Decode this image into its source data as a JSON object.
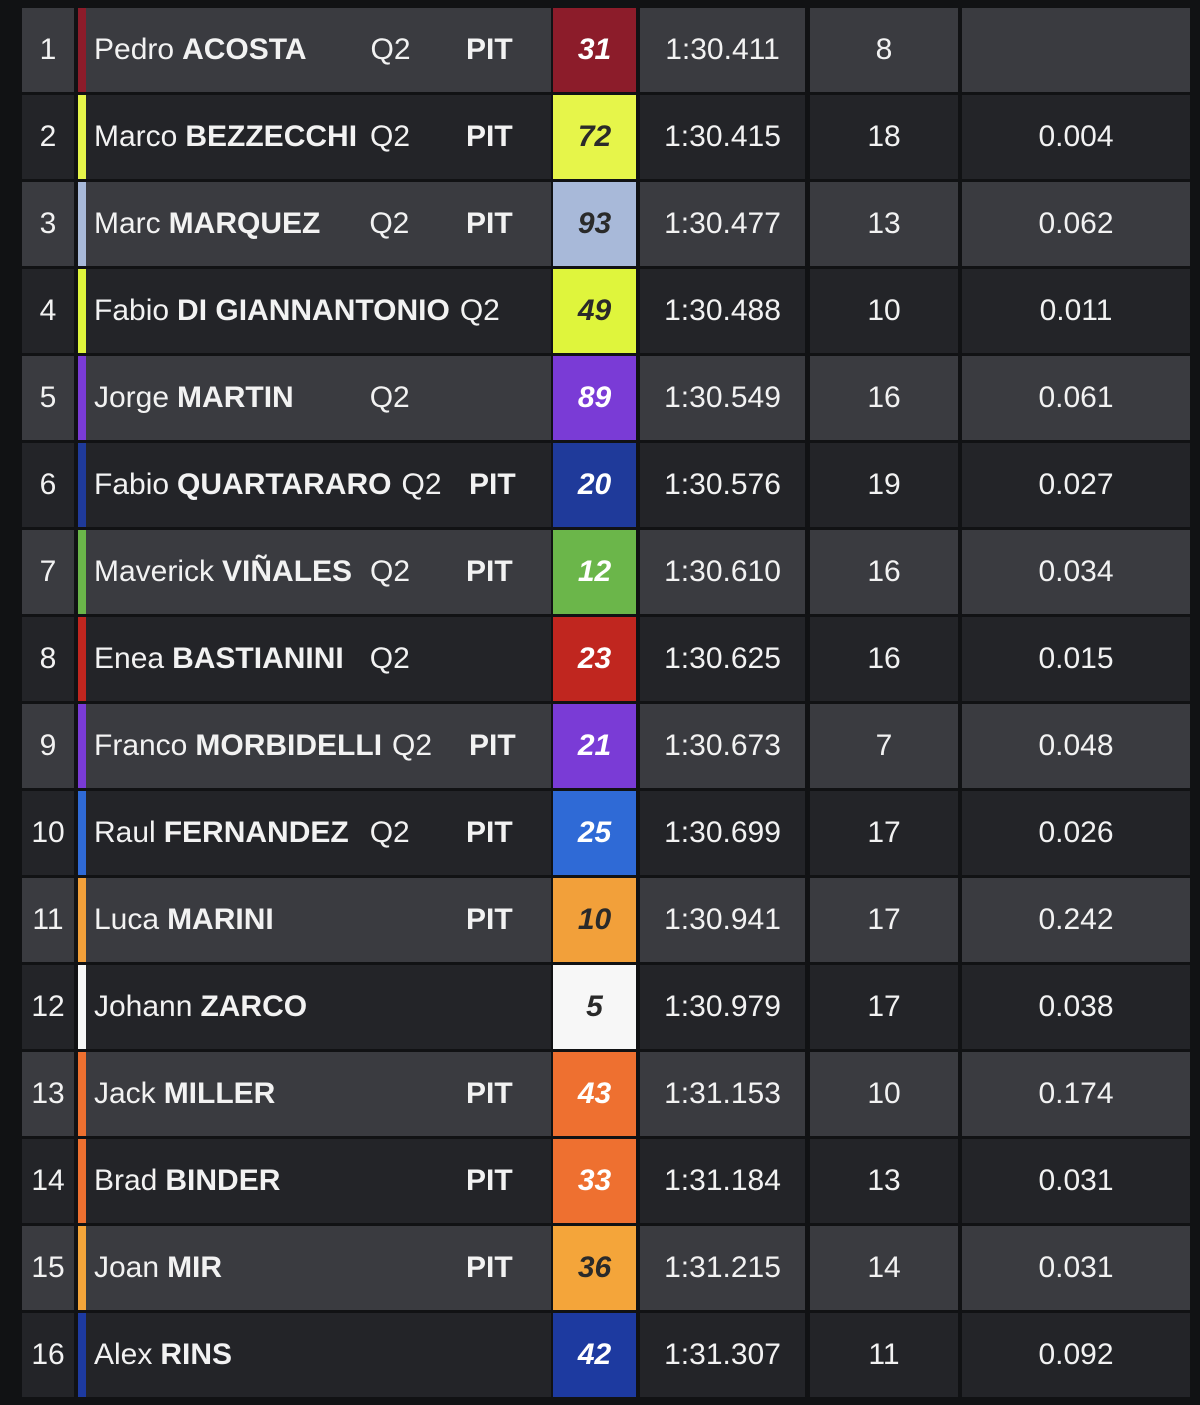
{
  "table": {
    "rows": [
      {
        "pos": 1,
        "first": "Pedro",
        "last": "ACOSTA",
        "session": "Q2",
        "pit": "PIT",
        "number": 31,
        "color": "#8c1c2a",
        "time": "1:30.411",
        "laps": 8
      },
      {
        "pos": 2,
        "first": "Marco",
        "last": "BEZZECCHI",
        "session": "Q2",
        "pit": "PIT",
        "number": 72,
        "color": "#e6f54a",
        "time": "1:30.415",
        "laps": 18,
        "gap": "0.004"
      },
      {
        "pos": 3,
        "first": "Marc",
        "last": "MARQUEZ",
        "session": "Q2",
        "pit": "PIT",
        "number": 93,
        "color": "#a8b9d9",
        "time": "1:30.477",
        "laps": 13,
        "gap": "0.062"
      },
      {
        "pos": 4,
        "first": "Fabio",
        "last": "DI GIANNANTONIO",
        "session": "Q2",
        "number": 49,
        "color": "#dff53c",
        "time": "1:30.488",
        "laps": 10,
        "gap": "0.011"
      },
      {
        "pos": 5,
        "first": "Jorge",
        "last": "MARTIN",
        "session": "Q2",
        "number": 89,
        "color": "#7a3bd6",
        "time": "1:30.549",
        "laps": 16,
        "gap": "0.061"
      },
      {
        "pos": 6,
        "first": "Fabio",
        "last": "QUARTARARO",
        "session": "Q2",
        "pit": "PIT",
        "number": 20,
        "color": "#1f3a9a",
        "time": "1:30.576",
        "laps": 19,
        "gap": "0.027"
      },
      {
        "pos": 7,
        "first": "Maverick",
        "last": "VIÑALES",
        "session": "Q2",
        "pit": "PIT",
        "number": 12,
        "color": "#6bb64a",
        "time": "1:30.610",
        "laps": 16,
        "gap": "0.034"
      },
      {
        "pos": 8,
        "first": "Enea",
        "last": "BASTIANINI",
        "session": "Q2",
        "number": 23,
        "color": "#c0261f",
        "time": "1:30.625",
        "laps": 16,
        "gap": "0.015"
      },
      {
        "pos": 9,
        "first": "Franco",
        "last": "MORBIDELLI",
        "session": "Q2",
        "pit": "PIT",
        "number": 21,
        "color": "#7a3bd6",
        "time": "1:30.673",
        "laps": 7,
        "gap": "0.048"
      },
      {
        "pos": 10,
        "first": "Raul",
        "last": "FERNANDEZ",
        "session": "Q2",
        "pit": "PIT",
        "number": 25,
        "color": "#2f6ad6",
        "time": "1:30.699",
        "laps": 17,
        "gap": "0.026"
      },
      {
        "pos": 11,
        "first": "Luca",
        "last": "MARINI",
        "pit": "PIT",
        "number": 10,
        "color": "#f2a03a",
        "time": "1:30.941",
        "laps": 17,
        "gap": "0.242"
      },
      {
        "pos": 12,
        "first": "Johann",
        "last": "ZARCO",
        "number": 5,
        "color": "#f7f7f7",
        "time": "1:30.979",
        "laps": 17,
        "gap": "0.038"
      },
      {
        "pos": 13,
        "first": "Jack",
        "last": "MILLER",
        "pit": "PIT",
        "number": 43,
        "color": "#ee7030",
        "time": "1:31.153",
        "laps": 10,
        "gap": "0.174"
      },
      {
        "pos": 14,
        "first": "Brad",
        "last": "BINDER",
        "pit": "PIT",
        "number": 33,
        "color": "#ee7030",
        "time": "1:31.184",
        "laps": 13,
        "gap": "0.031"
      },
      {
        "pos": 15,
        "first": "Joan",
        "last": "MIR",
        "pit": "PIT",
        "number": 36,
        "color": "#f4a53a",
        "time": "1:31.215",
        "laps": 14,
        "gap": "0.031"
      },
      {
        "pos": 16,
        "first": "Alex",
        "last": "RINS",
        "number": 42,
        "color": "#1d3aa0",
        "time": "1:31.307",
        "laps": 11,
        "gap": "0.092"
      }
    ]
  }
}
